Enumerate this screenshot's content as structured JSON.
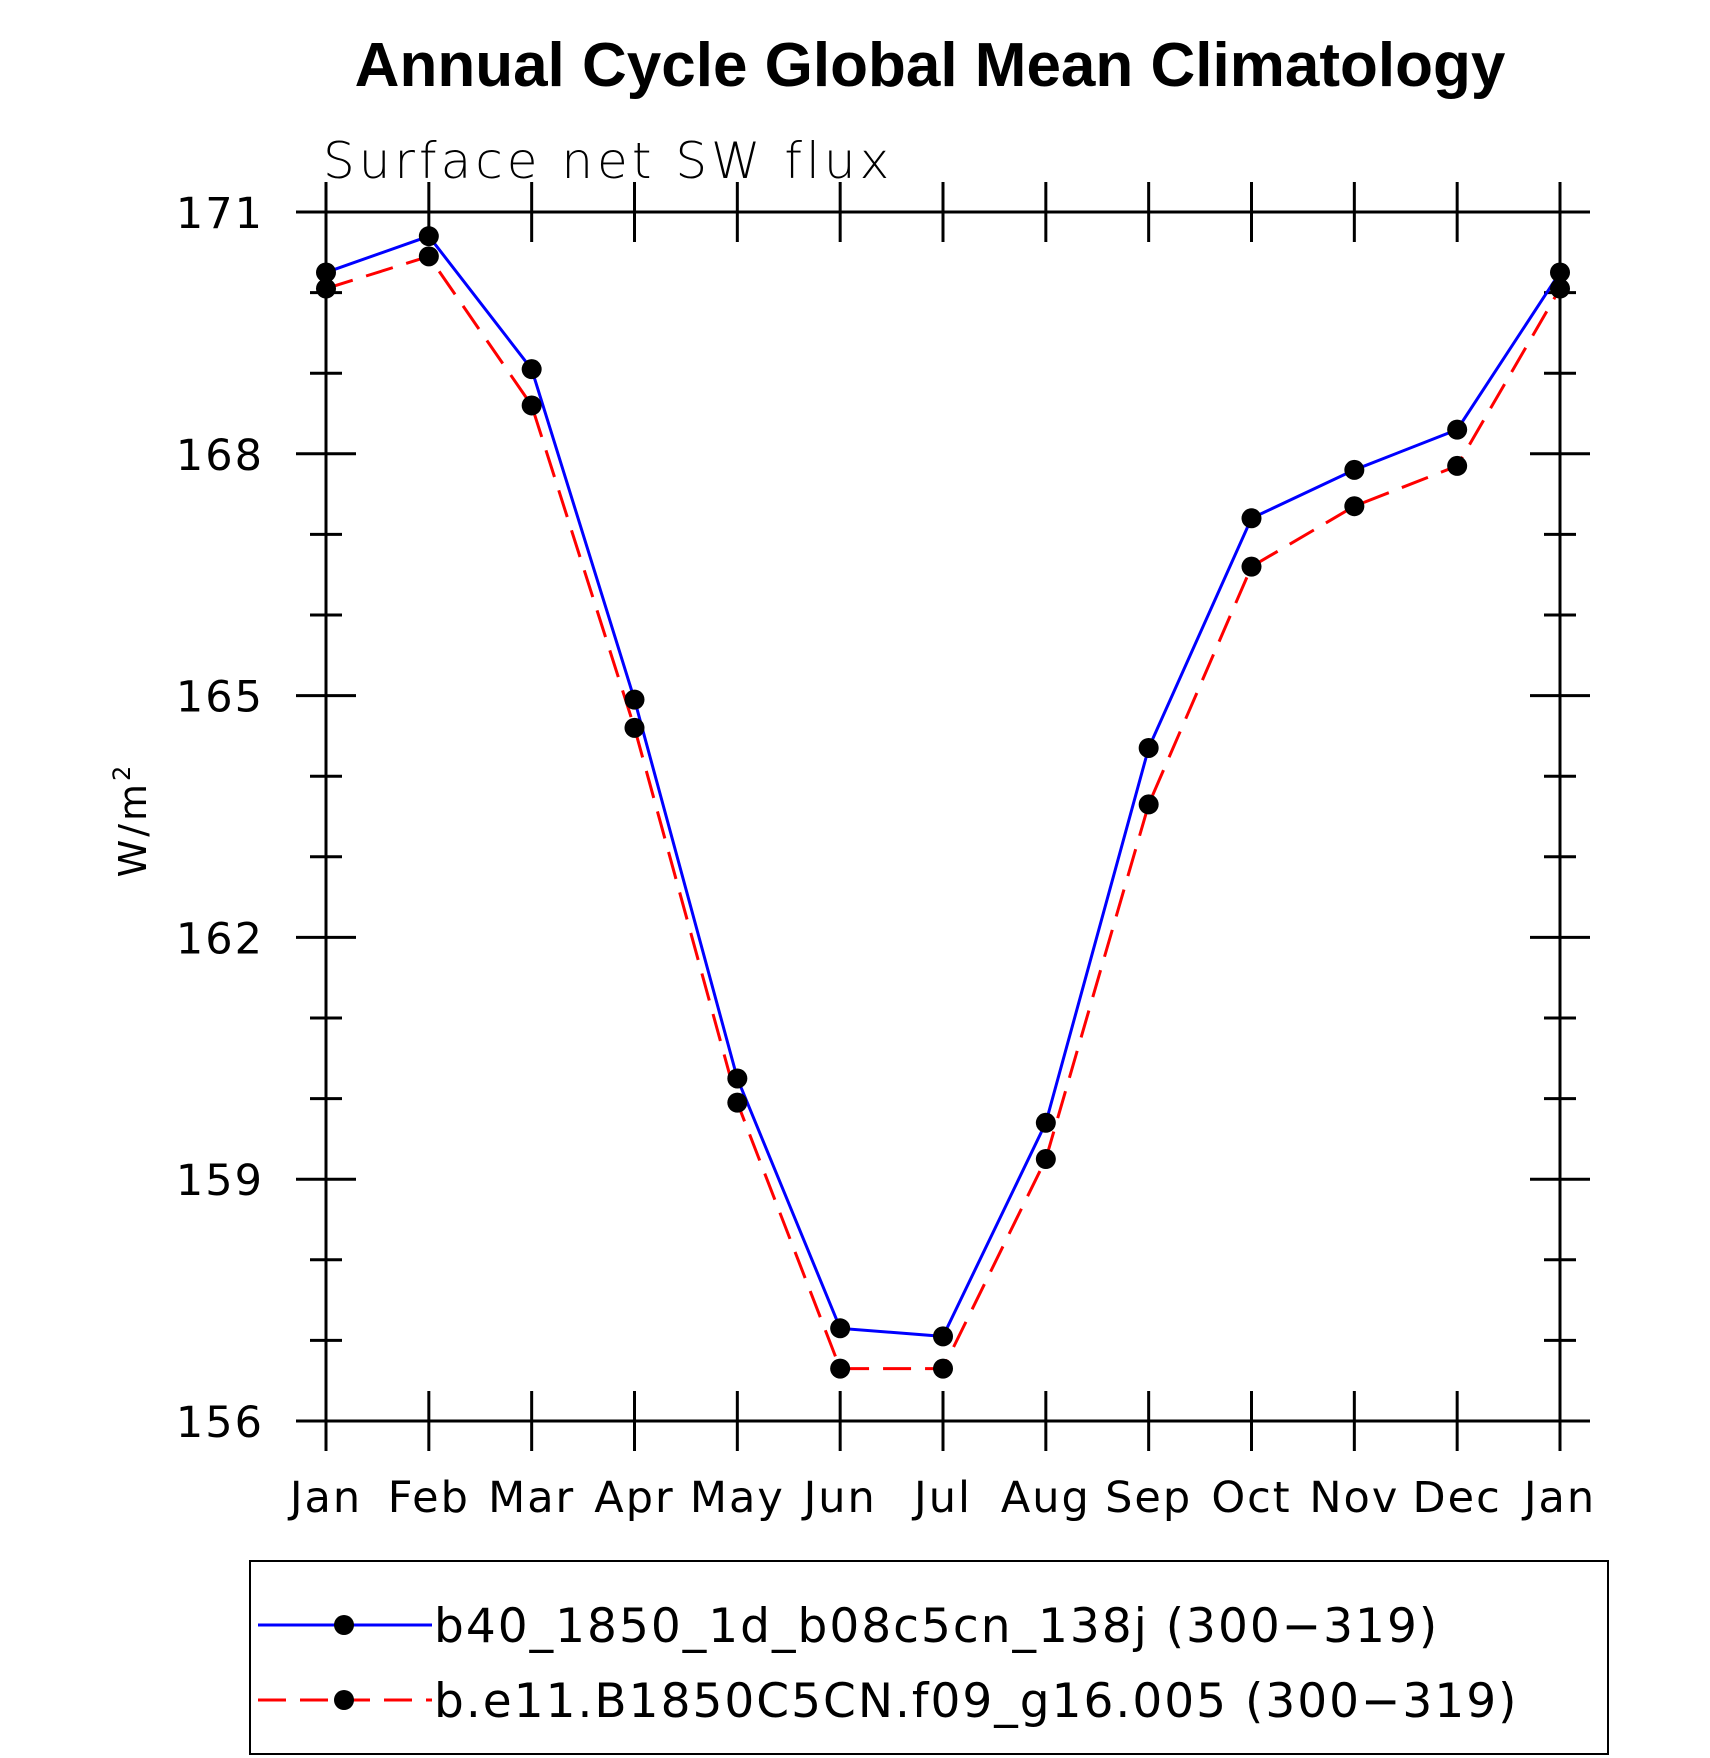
{
  "chart_data": {
    "type": "line",
    "title": "Annual Cycle Global Mean Climatology",
    "subtitle": "Surface net SW flux",
    "ylabel_base": "W/m",
    "ylabel_sup": "2",
    "categories": [
      "Jan",
      "Feb",
      "Mar",
      "Apr",
      "May",
      "Jun",
      "Jul",
      "Aug",
      "Sep",
      "Oct",
      "Nov",
      "Dec",
      "Jan"
    ],
    "ylim": [
      156,
      171
    ],
    "yticks": [
      156,
      159,
      162,
      165,
      168,
      171
    ],
    "series": [
      {
        "name": "b40_1850_1d_b08c5cn_138j (300−319)",
        "color": "#0000ff",
        "dash": "solid",
        "values": [
          170.25,
          170.7,
          169.05,
          164.95,
          160.25,
          157.15,
          157.05,
          159.7,
          164.35,
          167.2,
          167.8,
          168.3,
          170.25
        ]
      },
      {
        "name": "b.e11.B1850C5CN.f09_g16.005 (300−319)",
        "color": "#ff0000",
        "dash": "dashed",
        "values": [
          170.05,
          170.45,
          168.6,
          164.6,
          159.95,
          156.65,
          156.65,
          159.25,
          163.65,
          166.6,
          167.35,
          167.85,
          170.05
        ]
      }
    ],
    "grid": false,
    "legend_position": "bottom"
  }
}
